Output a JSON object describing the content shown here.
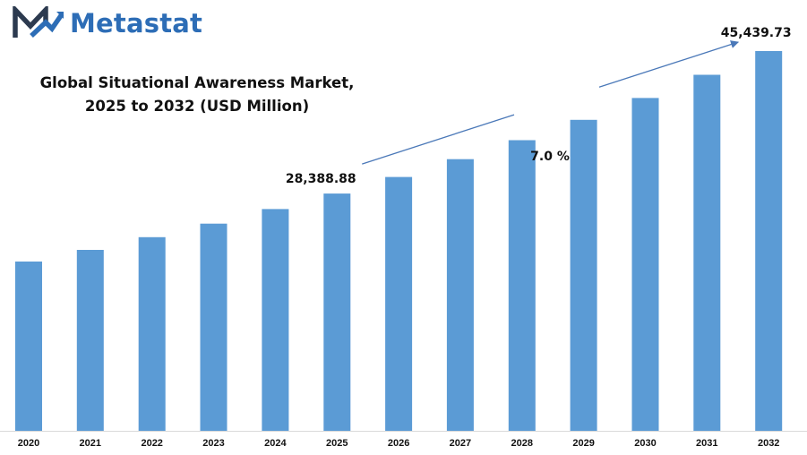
{
  "brand": {
    "name": "Metastat",
    "color": "#2d6db6"
  },
  "chart_data": {
    "type": "bar",
    "title_line1": "Global Situational Awareness Market,",
    "title_line2": "2025 to 2032 (USD Million)",
    "xlabel": "",
    "ylabel": "",
    "categories": [
      "2020",
      "2021",
      "2022",
      "2023",
      "2024",
      "2025",
      "2026",
      "2027",
      "2028",
      "2029",
      "2030",
      "2031",
      "2032"
    ],
    "values": [
      20250,
      21650,
      23170,
      24790,
      26530,
      28388.88,
      30375,
      32500,
      34780,
      37210,
      39820,
      42600,
      45439.73
    ],
    "ylim": [
      0,
      50000
    ],
    "bar_color": "#5b9bd5",
    "grid": false,
    "annotations": {
      "start_label": "28,388.88",
      "end_label": "45,439.73",
      "cagr_label": "7.0  %"
    }
  }
}
